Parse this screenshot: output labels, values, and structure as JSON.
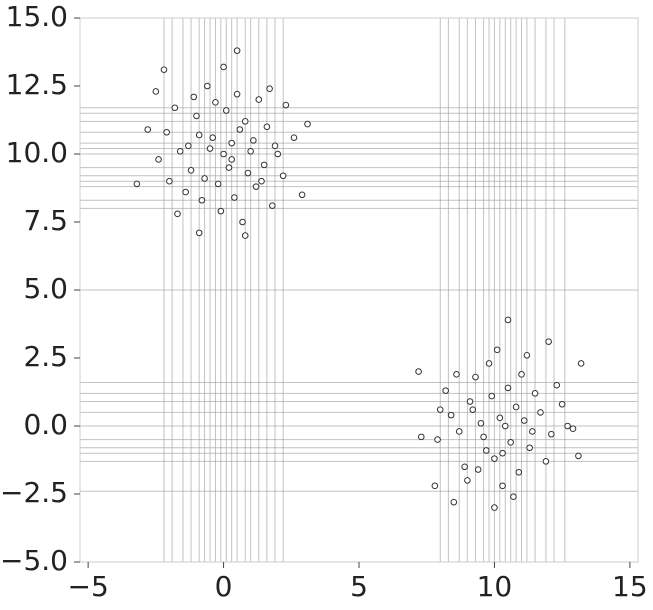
{
  "chart_data": {
    "type": "scatter",
    "x": [
      -0.5,
      0.3,
      1.1,
      -1.2,
      0.8,
      -0.2,
      0.6,
      -0.9,
      1.5,
      -1.6,
      0.1,
      0.4,
      -0.7,
      1.9,
      -2.1,
      0.0,
      1.2,
      -0.3,
      2.2,
      -1.4,
      0.9,
      -1.0,
      0.5,
      -2.4,
      1.6,
      -0.1,
      2.6,
      -1.8,
      0.7,
      -0.6,
      3.1,
      -3.2,
      -2.2,
      0.5,
      -0.9,
      2.9,
      -2.5,
      1.3,
      -1.3,
      0.2,
      1.0,
      -0.4,
      1.8,
      -2.8,
      -1.7,
      0.8,
      2.3,
      -0.8,
      1.4,
      -1.1,
      0.3,
      0.0,
      2.0,
      -2.0,
      1.7,
      10.2,
      9.6,
      10.8,
      9.1,
      11.3,
      10.0,
      10.5,
      8.7,
      11.7,
      9.3,
      10.9,
      8.4,
      12.1,
      9.8,
      10.3,
      11.0,
      8.9,
      12.5,
      7.9,
      10.6,
      9.5,
      11.5,
      10.1,
      9.0,
      11.9,
      8.2,
      12.9,
      7.2,
      13.2,
      7.8,
      10.5,
      12.0,
      10.0,
      8.5,
      13.1,
      7.3,
      11.2,
      9.7,
      10.4,
      11.4,
      9.2,
      10.7,
      8.6,
      12.3,
      9.9,
      10.3,
      11.1,
      9.4,
      12.7,
      8.0
    ],
    "values": [
      10.2,
      9.8,
      10.5,
      9.4,
      11.2,
      8.9,
      10.9,
      10.7,
      9.6,
      10.1,
      11.6,
      8.4,
      9.1,
      10.3,
      10.8,
      10.0,
      8.8,
      11.9,
      9.2,
      8.6,
      9.3,
      11.4,
      12.2,
      9.8,
      11.0,
      7.9,
      10.6,
      11.7,
      7.5,
      12.5,
      11.1,
      8.9,
      13.1,
      13.8,
      7.1,
      8.5,
      12.3,
      12.0,
      10.3,
      9.5,
      10.1,
      10.6,
      8.1,
      10.9,
      7.8,
      7.0,
      11.8,
      8.3,
      9.0,
      12.1,
      10.4,
      13.2,
      10.0,
      9.0,
      12.4,
      0.3,
      -0.4,
      0.7,
      0.9,
      -0.8,
      -1.2,
      1.4,
      -0.2,
      0.5,
      1.8,
      -1.7,
      0.4,
      -0.3,
      2.3,
      -2.2,
      1.9,
      -1.5,
      0.8,
      -0.5,
      -0.6,
      0.1,
      1.2,
      2.8,
      -2.0,
      -1.3,
      1.3,
      -0.1,
      2.0,
      2.3,
      -2.2,
      3.9,
      3.1,
      -3.0,
      -2.8,
      -1.1,
      -0.4,
      2.6,
      -0.9,
      0.0,
      -0.2,
      0.6,
      -2.6,
      1.9,
      1.5,
      1.1,
      -1.0,
      0.2,
      -1.6,
      0.0,
      0.6
    ],
    "vlines": [
      -2.2,
      -1.9,
      -1.5,
      -1.2,
      -0.9,
      -0.7,
      -0.5,
      -0.3,
      -0.1,
      0.1,
      0.3,
      0.5,
      0.8,
      1.0,
      1.3,
      1.6,
      1.9,
      2.2,
      8.0,
      8.3,
      8.7,
      9.0,
      9.3,
      9.6,
      9.8,
      10.0,
      10.2,
      10.4,
      10.6,
      10.8,
      11.0,
      11.2,
      11.5,
      11.9,
      12.2,
      12.6
    ],
    "hlines": [
      8.0,
      8.3,
      8.8,
      9.0,
      9.2,
      9.5,
      10.0,
      10.2,
      10.4,
      10.8,
      11.2,
      11.5,
      11.7,
      5.0,
      -2.4,
      -1.3,
      -1.0,
      -0.8,
      -0.5,
      0.0,
      0.5,
      0.9,
      1.2,
      1.6
    ],
    "xlim": [
      -5.3,
      15.3
    ],
    "ylim": [
      -5,
      15
    ],
    "xticks": [
      {
        "value": -5,
        "label": "−5"
      },
      0,
      5,
      10,
      15
    ],
    "yticks": [
      {
        "value": -5,
        "label": "−5.0"
      },
      {
        "value": -2.5,
        "label": "−2.5"
      },
      {
        "value": 0,
        "label": "0.0"
      },
      2.5,
      {
        "value": 5,
        "label": "5.0"
      },
      7.5,
      {
        "value": 10,
        "label": "10.0"
      },
      12.5,
      {
        "value": 15,
        "label": "15.0"
      }
    ],
    "color": "#ffffff",
    "edgecolor": "#333333",
    "linecolor": "#999999"
  }
}
